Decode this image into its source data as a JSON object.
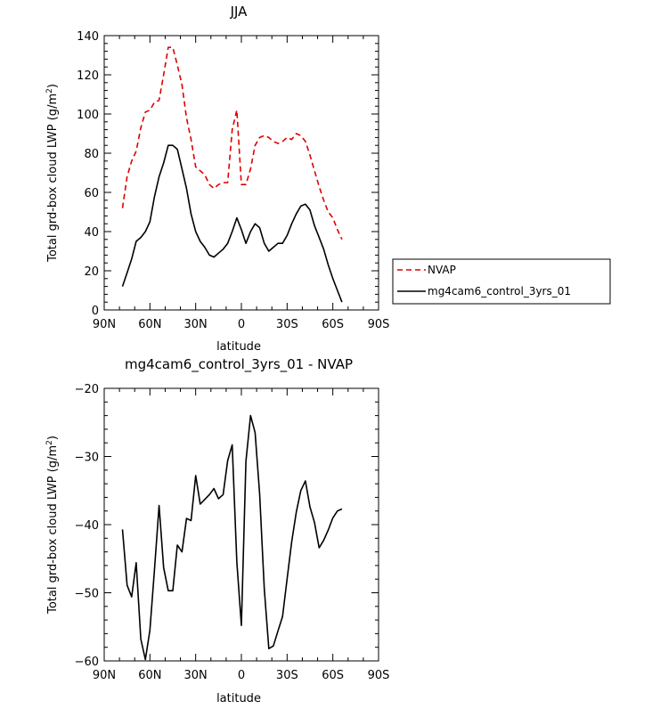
{
  "chart_data": [
    {
      "type": "line",
      "title": "JJA",
      "xlabel": "latitude",
      "ylabel": "Total grd-box cloud LWP (g/m²)",
      "ylabel_main": "Total grd-box cloud LWP (g/m",
      "ylabel_sup": "2",
      "ylabel_end": ")",
      "xlim": [
        90,
        -90
      ],
      "ylim": [
        0,
        140
      ],
      "xticks": [
        90,
        60,
        30,
        0,
        -30,
        -60,
        -90
      ],
      "xtick_labels": [
        "90N",
        "60N",
        "30N",
        "0",
        "30S",
        "60S",
        "90S"
      ],
      "yticks": [
        0,
        20,
        40,
        60,
        80,
        100,
        120,
        140
      ],
      "ytick_labels": [
        "0",
        "20",
        "40",
        "60",
        "80",
        "100",
        "120",
        "140"
      ],
      "legend_position": "right",
      "series": [
        {
          "name": "NVAP",
          "color": "#dd0000",
          "style": "dashed",
          "x": [
            78,
            75,
            72,
            69,
            66,
            63,
            60,
            57,
            54,
            51,
            48,
            45,
            42,
            39,
            36,
            33,
            30,
            27,
            24,
            21,
            18,
            15,
            12,
            9,
            6,
            3,
            0,
            -3,
            -6,
            -9,
            -12,
            -15,
            -18,
            -21,
            -24,
            -27,
            -30,
            -33,
            -36,
            -39,
            -42,
            -45,
            -48,
            -51,
            -54,
            -57,
            -60,
            -63,
            -66
          ],
          "y": [
            52,
            68,
            76,
            81,
            93,
            101,
            102,
            106,
            107,
            120,
            134,
            134,
            125,
            115,
            98,
            87,
            73,
            71,
            69,
            64,
            62,
            64,
            65,
            65,
            92,
            102,
            64,
            64,
            72,
            84,
            88,
            89,
            88,
            86,
            85,
            86,
            88,
            87,
            90,
            89,
            86,
            79,
            71,
            63,
            56,
            50,
            47,
            41,
            36
          ]
        },
        {
          "name": "mg4cam6_control_3yrs_01",
          "color": "#000000",
          "style": "solid",
          "x": [
            78,
            75,
            72,
            69,
            66,
            63,
            60,
            57,
            54,
            51,
            48,
            45,
            42,
            39,
            36,
            33,
            30,
            27,
            24,
            21,
            18,
            15,
            12,
            9,
            6,
            3,
            0,
            -3,
            -6,
            -9,
            -12,
            -15,
            -18,
            -21,
            -24,
            -27,
            -30,
            -33,
            -36,
            -39,
            -42,
            -45,
            -48,
            -51,
            -54,
            -57,
            -60,
            -63,
            -66
          ],
          "y": [
            12,
            19,
            26,
            35,
            37,
            40,
            45,
            58,
            68,
            75,
            84,
            84,
            82,
            72,
            62,
            49,
            40,
            35,
            32,
            28,
            27,
            29,
            31,
            34,
            40,
            47,
            41,
            34,
            40,
            44,
            42,
            34,
            30,
            32,
            34,
            34,
            38,
            44,
            49,
            53,
            54,
            51,
            43,
            37,
            31,
            23,
            16,
            10,
            4
          ]
        }
      ]
    },
    {
      "type": "line",
      "title": "mg4cam6_control_3yrs_01 - NVAP",
      "xlabel": "latitude",
      "ylabel": "Total grd-box cloud LWP (g/m²)",
      "ylabel_main": "Total grd-box cloud LWP (g/m",
      "ylabel_sup": "2",
      "ylabel_end": ")",
      "xlim": [
        90,
        -90
      ],
      "ylim": [
        -60,
        -20
      ],
      "xticks": [
        90,
        60,
        30,
        0,
        -30,
        -60,
        -90
      ],
      "xtick_labels": [
        "90N",
        "60N",
        "30N",
        "0",
        "30S",
        "60S",
        "90S"
      ],
      "yticks": [
        -60,
        -50,
        -40,
        -30,
        -20
      ],
      "ytick_labels": [
        "−60",
        "−50",
        "−40",
        "−30",
        "−20"
      ],
      "series": [
        {
          "color": "#000000",
          "style": "solid",
          "x": [
            78,
            75,
            72,
            69,
            66,
            63,
            60,
            57,
            54,
            51,
            48,
            45,
            42,
            39,
            36,
            33,
            30,
            27,
            24,
            21,
            18,
            15,
            12,
            9,
            6,
            3,
            0,
            -3,
            -6,
            -9,
            -12,
            -15,
            -18,
            -21,
            -24,
            -27,
            -30,
            -33,
            -36,
            -39,
            -42,
            -45,
            -48,
            -51,
            -54,
            -57,
            -60,
            -63,
            -66
          ],
          "y": [
            -40.7,
            -48.9,
            -50.6,
            -45.6,
            -56.8,
            -59.8,
            -55.5,
            -46.5,
            -37.2,
            -46.3,
            -49.7,
            -49.7,
            -43.0,
            -44.0,
            -39.1,
            -39.4,
            -32.8,
            -37.0,
            -36.3,
            -35.6,
            -34.7,
            -36.2,
            -35.6,
            -30.6,
            -28.3,
            -45.5,
            -54.8,
            -30.7,
            -24.0,
            -26.5,
            -35.5,
            -49.4,
            -58.2,
            -57.8,
            -55.6,
            -53.5,
            -48.0,
            -42.5,
            -38.2,
            -35.0,
            -33.6,
            -37.4,
            -39.7,
            -43.4,
            -42.3,
            -40.8,
            -39.0,
            -38.0,
            -37.7
          ]
        }
      ]
    }
  ]
}
